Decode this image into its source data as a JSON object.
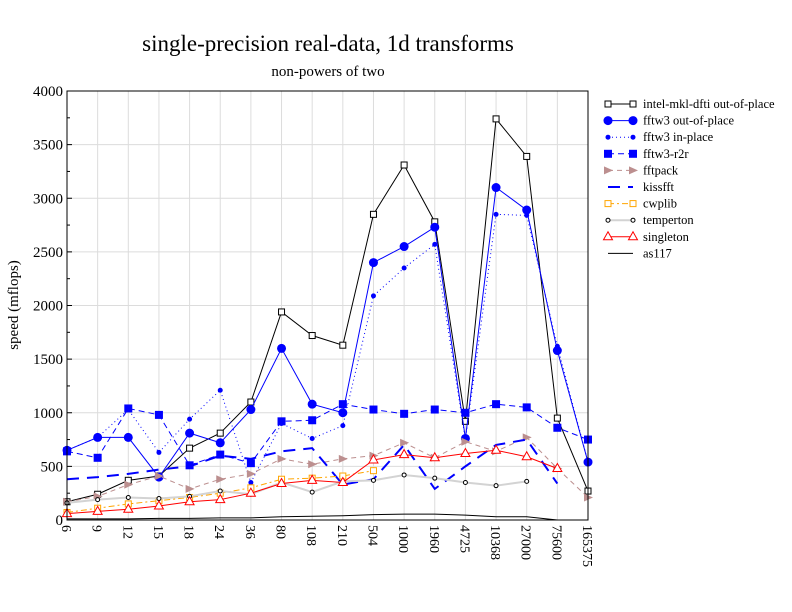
{
  "chart_data": {
    "type": "line",
    "title": "single-precision real-data, 1d transforms",
    "subtitle": "non-powers of two",
    "xlabel": "",
    "ylabel": "speed (mflops)",
    "ylim": [
      0,
      4000
    ],
    "yticks": [
      0,
      500,
      1000,
      1500,
      2000,
      2500,
      3000,
      3500,
      4000
    ],
    "grid": true,
    "legend_position": "right-outside",
    "categories": [
      "6",
      "9",
      "12",
      "15",
      "18",
      "24",
      "36",
      "80",
      "108",
      "210",
      "504",
      "1000",
      "1960",
      "4725",
      "10368",
      "27000",
      "75600",
      "165375"
    ],
    "series": [
      {
        "name": "intel-mkl-dfti out-of-place",
        "color": "#000000",
        "dash": "",
        "marker": "open-square",
        "values": [
          170,
          240,
          370,
          410,
          670,
          810,
          1100,
          1940,
          1720,
          1630,
          2850,
          3310,
          2780,
          920,
          3740,
          3390,
          950,
          270
        ]
      },
      {
        "name": "fftw3 out-of-place",
        "color": "#0000ff",
        "dash": "",
        "marker": "big-circle",
        "values": [
          650,
          770,
          770,
          400,
          810,
          720,
          1030,
          1600,
          1080,
          1000,
          2400,
          2550,
          2730,
          760,
          3100,
          2890,
          1580,
          540
        ]
      },
      {
        "name": "fftw3 in-place",
        "color": "#0000ff",
        "dash": "1,3",
        "marker": "small-circle",
        "values": [
          650,
          770,
          1030,
          630,
          940,
          1210,
          350,
          900,
          760,
          880,
          2090,
          2350,
          2570,
          750,
          2850,
          2840,
          1620,
          540
        ]
      },
      {
        "name": "fftw3-r2r",
        "color": "#0000ff",
        "dash": "6,4",
        "marker": "square",
        "values": [
          640,
          580,
          1040,
          980,
          510,
          610,
          530,
          920,
          930,
          1080,
          1030,
          990,
          1030,
          1000,
          1080,
          1050,
          860,
          750
        ]
      },
      {
        "name": "fftpack",
        "color": "#bc8f8f",
        "dash": "5,4",
        "marker": "triangle-right",
        "values": [
          170,
          220,
          330,
          410,
          290,
          380,
          430,
          570,
          520,
          570,
          600,
          720,
          580,
          730,
          640,
          770,
          480,
          210
        ]
      },
      {
        "name": "kissfft",
        "color": "#0000ff",
        "dash": "12,8",
        "marker": "none",
        "values": [
          380,
          400,
          430,
          470,
          500,
          600,
          570,
          640,
          670,
          330,
          380,
          700,
          290,
          500,
          700,
          750,
          340,
          null
        ]
      },
      {
        "name": "cwplib",
        "color": "#ffa500",
        "dash": "6,3,2,3",
        "marker": "open-square",
        "values": [
          70,
          110,
          150,
          180,
          210,
          250,
          300,
          380,
          390,
          410,
          460,
          null,
          null,
          null,
          null,
          null,
          null,
          null
        ]
      },
      {
        "name": "temperton",
        "color": "#d3d3d3",
        "dash": "",
        "marker": "tiny-circle",
        "values": [
          160,
          190,
          210,
          200,
          220,
          270,
          240,
          350,
          260,
          360,
          370,
          420,
          390,
          350,
          320,
          360,
          null,
          null
        ]
      },
      {
        "name": "singleton",
        "color": "#ff0000",
        "dash": "",
        "marker": "open-triangle",
        "values": [
          60,
          80,
          100,
          130,
          170,
          190,
          250,
          340,
          370,
          350,
          560,
          610,
          580,
          620,
          650,
          590,
          480,
          null
        ]
      },
      {
        "name": "as117",
        "color": "#000000",
        "dash": "",
        "marker": "none",
        "values": [
          10,
          10,
          10,
          15,
          15,
          20,
          20,
          30,
          35,
          40,
          50,
          55,
          55,
          45,
          30,
          30,
          0,
          null
        ]
      }
    ]
  }
}
